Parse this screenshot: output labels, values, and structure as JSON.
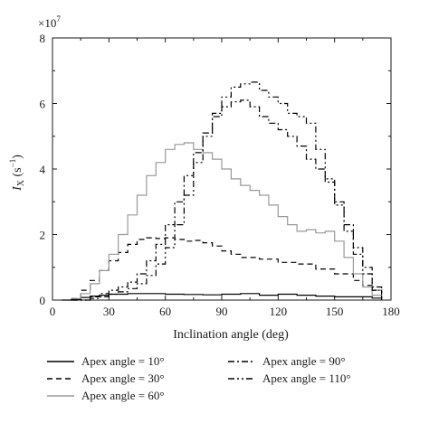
{
  "chart_data": {
    "type": "line",
    "title": "",
    "xlabel": "Inclination angle (deg)",
    "ylabel_main": "I",
    "ylabel_sub": "X",
    "ylabel_unit": " (s",
    "ylabel_exp": "−1",
    "ylabel_close": ")",
    "y_multiplier": "×10",
    "y_multiplier_exp": "7",
    "xlim": [
      0,
      180
    ],
    "ylim": [
      0,
      8
    ],
    "xticks": [
      0,
      30,
      60,
      90,
      120,
      150,
      180
    ],
    "yticks": [
      0,
      2,
      4,
      6,
      8
    ],
    "legend_position": "bottom",
    "series": [
      {
        "name": "Apex angle = 10°",
        "color": "#000000",
        "dash": "solid",
        "x": [
          5,
          10,
          15,
          20,
          25,
          30,
          40,
          50,
          60,
          70,
          80,
          90,
          100,
          110,
          120,
          130,
          140,
          150,
          160,
          170,
          175
        ],
        "y": [
          0,
          0.02,
          0.08,
          0.12,
          0.15,
          0.18,
          0.2,
          0.2,
          0.18,
          0.17,
          0.16,
          0.18,
          0.2,
          0.15,
          0.18,
          0.15,
          0.12,
          0.1,
          0.1,
          0.06,
          0
        ]
      },
      {
        "name": "Apex angle = 30°",
        "color": "#000000",
        "dash": "dashed",
        "x": [
          10,
          15,
          20,
          25,
          30,
          35,
          40,
          45,
          50,
          55,
          60,
          65,
          70,
          75,
          80,
          85,
          90,
          95,
          100,
          110,
          120,
          130,
          140,
          150,
          160,
          165,
          170,
          175
        ],
        "y": [
          0.05,
          0.3,
          0.6,
          0.9,
          1.2,
          1.45,
          1.7,
          1.85,
          1.9,
          1.88,
          1.9,
          1.85,
          1.8,
          1.82,
          1.75,
          1.65,
          1.5,
          1.4,
          1.3,
          1.25,
          1.15,
          1.1,
          0.95,
          0.8,
          0.6,
          0.45,
          0.3,
          0.05
        ]
      },
      {
        "name": "Apex angle = 60°",
        "color": "#999999",
        "dash": "solid",
        "x": [
          10,
          15,
          20,
          25,
          30,
          35,
          40,
          45,
          50,
          55,
          60,
          65,
          70,
          75,
          80,
          85,
          90,
          95,
          100,
          105,
          110,
          115,
          120,
          125,
          130,
          135,
          140,
          145,
          150,
          155,
          160,
          165,
          170,
          175
        ],
        "y": [
          0.05,
          0.2,
          0.5,
          0.9,
          1.4,
          2.0,
          2.6,
          3.2,
          3.8,
          4.2,
          4.6,
          4.75,
          4.8,
          4.6,
          4.5,
          4.3,
          4.0,
          3.7,
          3.5,
          3.35,
          3.2,
          2.9,
          2.55,
          2.3,
          2.1,
          2.15,
          2.05,
          2.1,
          1.8,
          1.3,
          0.8,
          0.4,
          0.15,
          0.02
        ]
      },
      {
        "name": "Apex angle = 90°",
        "color": "#000000",
        "dash": "dashdot",
        "x": [
          10,
          20,
          25,
          30,
          35,
          40,
          45,
          50,
          55,
          60,
          65,
          70,
          75,
          80,
          85,
          90,
          95,
          100,
          105,
          110,
          115,
          120,
          125,
          130,
          135,
          140,
          145,
          150,
          155,
          160,
          165,
          170,
          175
        ],
        "y": [
          0,
          0.1,
          0.2,
          0.3,
          0.4,
          0.55,
          0.8,
          1.2,
          1.7,
          2.3,
          3.0,
          3.8,
          4.5,
          5.1,
          5.6,
          5.9,
          6.05,
          6.1,
          5.9,
          5.6,
          5.4,
          5.2,
          5.0,
          4.7,
          4.3,
          4.0,
          3.6,
          3.0,
          2.3,
          1.6,
          1.0,
          0.4,
          0.05
        ]
      },
      {
        "name": "Apex angle = 110°",
        "color": "#000000",
        "dash": "dashdotdot",
        "x": [
          10,
          20,
          25,
          30,
          35,
          40,
          45,
          50,
          55,
          60,
          65,
          70,
          75,
          80,
          85,
          90,
          95,
          100,
          105,
          110,
          115,
          120,
          125,
          130,
          135,
          140,
          145,
          150,
          155,
          160,
          165,
          170,
          175
        ],
        "y": [
          0,
          0.05,
          0.1,
          0.18,
          0.25,
          0.35,
          0.5,
          0.75,
          1.1,
          1.6,
          2.3,
          3.2,
          4.2,
          5.0,
          5.7,
          6.2,
          6.5,
          6.6,
          6.65,
          6.4,
          6.2,
          6.0,
          5.7,
          5.6,
          5.4,
          4.6,
          3.7,
          2.9,
          2.1,
          1.4,
          0.8,
          0.3,
          0.02
        ]
      }
    ]
  }
}
